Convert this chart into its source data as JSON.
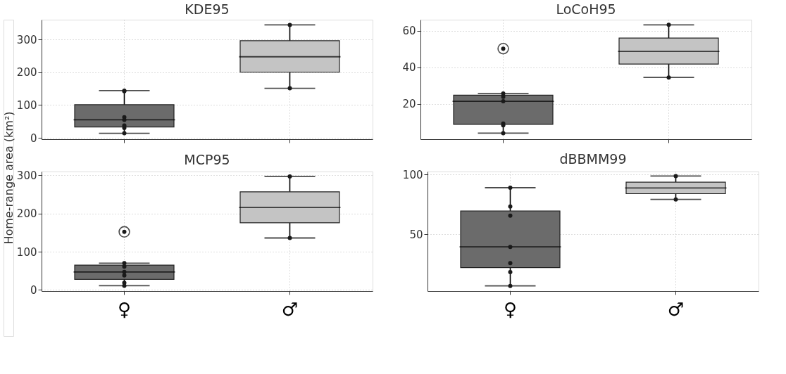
{
  "chart_data": [
    {
      "type": "box",
      "title": "KDE95",
      "ylabel": "Home-range area (km²)",
      "categories": [
        "♀",
        "♂"
      ],
      "colors": [
        "#6b6b6b",
        "#c4c4c4"
      ],
      "ylim": [
        -4,
        360
      ],
      "yticks": [
        0,
        100,
        200,
        300
      ],
      "grid": true,
      "tick_labels": "y",
      "boxes": [
        {
          "low": 14,
          "q1": 33,
          "median": 55,
          "q3": 101,
          "high": 144
        },
        {
          "low": 151,
          "q1": 200,
          "median": 247,
          "q3": 296,
          "high": 344
        }
      ],
      "series": [
        {
          "type": "scatter",
          "marker": "circle",
          "color": "#1a1a1a",
          "x": [
            "♀",
            "♀",
            "♀",
            "♀",
            "♀",
            "♀",
            "♀",
            "♂",
            "♂"
          ],
          "values": [
            14,
            30,
            38,
            55,
            63,
            142,
            144,
            344,
            151
          ]
        }
      ]
    },
    {
      "type": "box",
      "title": "LoCoH95",
      "categories": [
        "♀",
        "♂"
      ],
      "colors": [
        "#6b6b6b",
        "#c4c4c4"
      ],
      "ylim": [
        0.8,
        66
      ],
      "yticks": [
        20,
        40,
        60
      ],
      "grid": true,
      "tick_labels": "y",
      "boxes": [
        {
          "low": 4.1,
          "q1": 8.9,
          "median": 21.5,
          "q3": 24.8,
          "high": 25.7,
          "outliers": [
            50.2
          ]
        },
        {
          "low": 34.5,
          "q1": 41.8,
          "median": 48.7,
          "q3": 56,
          "high": 63.2
        }
      ],
      "series": [
        {
          "type": "scatter",
          "marker": "circle",
          "color": "#1a1a1a",
          "x": [
            "♀",
            "♀",
            "♀",
            "♀",
            "♀",
            "♀",
            "♂",
            "♂"
          ],
          "values": [
            4.1,
            8.4,
            9.3,
            21.5,
            23.9,
            25.7,
            63.2,
            34.5
          ]
        }
      ]
    },
    {
      "type": "box",
      "title": "MCP95",
      "categories": [
        "♀",
        "♂"
      ],
      "colors": [
        "#6b6b6b",
        "#c4c4c4"
      ],
      "ylim": [
        -3,
        310
      ],
      "yticks": [
        0,
        100,
        200,
        300
      ],
      "grid": true,
      "boxes": [
        {
          "low": 11,
          "q1": 27.5,
          "median": 47,
          "q3": 65,
          "high": 70,
          "outliers": [
            152
          ]
        },
        {
          "low": 136,
          "q1": 176,
          "median": 216,
          "q3": 257,
          "high": 297
        }
      ],
      "series": [
        {
          "type": "scatter",
          "marker": "circle",
          "color": "#1a1a1a",
          "x": [
            "♀",
            "♀",
            "♀",
            "♀",
            "♀",
            "♀",
            "♂",
            "♂"
          ],
          "values": [
            11,
            18.5,
            38,
            47,
            61,
            70,
            297,
            136
          ]
        }
      ]
    },
    {
      "type": "box",
      "title": "dBBMM99",
      "categories": [
        "♀",
        "♂"
      ],
      "colors": [
        "#6b6b6b",
        "#c4c4c4"
      ],
      "ylim": [
        2.7,
        102.5
      ],
      "yticks": [
        50,
        100
      ],
      "grid": true,
      "boxes": [
        {
          "low": 7,
          "q1": 22.3,
          "median": 39.6,
          "q3": 69.5,
          "high": 89
        },
        {
          "low": 79.2,
          "q1": 84,
          "median": 88.8,
          "q3": 93.6,
          "high": 98.7
        }
      ],
      "series": [
        {
          "type": "scatter",
          "marker": "circle",
          "color": "#1a1a1a",
          "x": [
            "♀",
            "♀",
            "♀",
            "♀",
            "♀",
            "♀",
            "♀",
            "♂",
            "♂"
          ],
          "values": [
            7,
            18.6,
            26.1,
            39.6,
            65.7,
            73.3,
            89,
            98.7,
            79.2
          ]
        }
      ]
    }
  ]
}
